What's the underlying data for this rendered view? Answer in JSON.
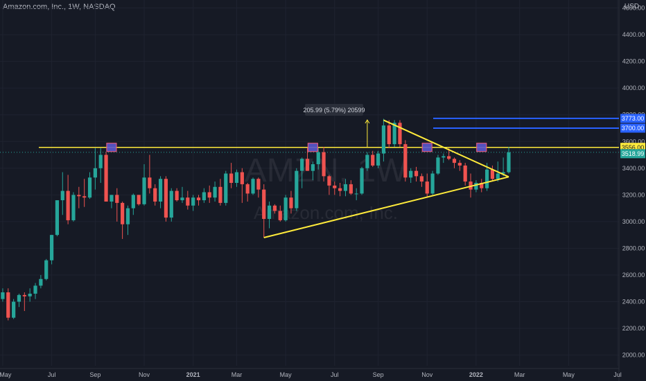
{
  "header": {
    "title": "Amazon.com, Inc., 1W, NASDAQ",
    "currency": "USD"
  },
  "watermark": {
    "symbol": "AMZN, 1W",
    "name": "Amazon.com, Inc."
  },
  "colors": {
    "background": "#161a25",
    "up": "#26a69a",
    "down": "#ef5350",
    "trend": "#ffeb3b",
    "level": "#2962ff",
    "box": "#5a58d0"
  },
  "measure_label": "205.99 (5.79%) 20599",
  "price_tags": [
    {
      "text": "3773.00",
      "price": 3773,
      "kind": "level"
    },
    {
      "text": "3700.00",
      "price": 3700,
      "kind": "level"
    },
    {
      "text": "3556.00",
      "price": 3556,
      "kind": "support"
    },
    {
      "text": "3518.99",
      "price": 3518.99,
      "kind": "last"
    }
  ],
  "chart_data": {
    "type": "candlestick",
    "timeframe": "1W",
    "y_ticks": [
      2000,
      2200,
      2400,
      2600,
      2800,
      3000,
      3200,
      3400,
      3600,
      3800,
      4000,
      4200,
      4400,
      4600
    ],
    "y_tick_labels": [
      "2000.00",
      "2200.00",
      "2400.00",
      "2600.00",
      "2800.00",
      "3000.00",
      "3200.00",
      "3400.00",
      "3600.00",
      "3800.00",
      "4000.00",
      "4200.00",
      "4400.00",
      "4600.00"
    ],
    "x_labels": [
      "May",
      "Jul",
      "Sep",
      "Nov",
      "2021",
      "Mar",
      "May",
      "Jul",
      "Sep",
      "Nov",
      "2022",
      "Mar",
      "May",
      "Jul"
    ],
    "x_label_weeks": [
      0,
      9,
      17,
      26,
      35,
      43,
      52,
      61,
      69,
      78,
      87,
      95,
      104,
      113
    ],
    "ylim": [
      1920,
      4660
    ],
    "xlim": [
      -0.5,
      114
    ],
    "candles": [
      [
        2420,
        2500,
        2400,
        2470
      ],
      [
        2470,
        2500,
        2260,
        2280
      ],
      [
        2280,
        2420,
        2270,
        2400
      ],
      [
        2400,
        2460,
        2360,
        2450
      ],
      [
        2450,
        2470,
        2330,
        2440
      ],
      [
        2440,
        2500,
        2400,
        2460
      ],
      [
        2460,
        2540,
        2420,
        2520
      ],
      [
        2520,
        2600,
        2500,
        2570
      ],
      [
        2570,
        2720,
        2560,
        2710
      ],
      [
        2710,
        2900,
        2680,
        2900
      ],
      [
        2900,
        3160,
        2890,
        3160
      ],
      [
        3160,
        3370,
        3050,
        3230
      ],
      [
        3230,
        3350,
        2980,
        3010
      ],
      [
        3010,
        3220,
        3000,
        3200
      ],
      [
        3200,
        3260,
        3100,
        3190
      ],
      [
        3190,
        3320,
        3110,
        3180
      ],
      [
        3180,
        3370,
        3170,
        3330
      ],
      [
        3330,
        3550,
        3240,
        3400
      ],
      [
        3400,
        3550,
        3290,
        3500
      ],
      [
        3500,
        3520,
        3150,
        3150
      ],
      [
        3150,
        3200,
        3100,
        3200
      ],
      [
        3200,
        3250,
        3000,
        3140
      ],
      [
        3140,
        3150,
        2870,
        2980
      ],
      [
        2980,
        3120,
        2900,
        3100
      ],
      [
        3100,
        3210,
        3050,
        3200
      ],
      [
        3200,
        3200,
        3120,
        3130
      ],
      [
        3130,
        3430,
        3120,
        3330
      ],
      [
        3330,
        3500,
        3210,
        3250
      ],
      [
        3250,
        3280,
        3120,
        3150
      ],
      [
        3150,
        3340,
        3100,
        3320
      ],
      [
        3320,
        3340,
        3000,
        3030
      ],
      [
        3030,
        3250,
        3000,
        3230
      ],
      [
        3230,
        3250,
        3150,
        3160
      ],
      [
        3160,
        3260,
        3140,
        3180
      ],
      [
        3180,
        3230,
        3090,
        3120
      ],
      [
        3120,
        3200,
        3080,
        3180
      ],
      [
        3180,
        3200,
        3120,
        3160
      ],
      [
        3160,
        3250,
        3140,
        3220
      ],
      [
        3220,
        3270,
        3140,
        3180
      ],
      [
        3180,
        3300,
        3150,
        3260
      ],
      [
        3260,
        3320,
        3120,
        3140
      ],
      [
        3140,
        3380,
        3120,
        3360
      ],
      [
        3360,
        3440,
        3250,
        3290
      ],
      [
        3290,
        3390,
        3260,
        3370
      ],
      [
        3370,
        3400,
        3140,
        3280
      ],
      [
        3280,
        3290,
        3150,
        3210
      ],
      [
        3210,
        3330,
        3200,
        3320
      ],
      [
        3320,
        3330,
        3180,
        3240
      ],
      [
        3240,
        3280,
        2880,
        3020
      ],
      [
        3020,
        3150,
        2950,
        3120
      ],
      [
        3120,
        3130,
        3060,
        3080
      ],
      [
        3080,
        3120,
        3000,
        3010
      ],
      [
        3010,
        3200,
        3000,
        3180
      ],
      [
        3180,
        3230,
        3060,
        3100
      ],
      [
        3100,
        3400,
        3080,
        3380
      ],
      [
        3380,
        3480,
        3250,
        3470
      ],
      [
        3470,
        3550,
        3380,
        3380
      ],
      [
        3380,
        3450,
        3310,
        3430
      ],
      [
        3430,
        3550,
        3390,
        3520
      ],
      [
        3520,
        3560,
        3300,
        3340
      ],
      [
        3340,
        3350,
        3200,
        3270
      ],
      [
        3270,
        3300,
        3200,
        3250
      ],
      [
        3250,
        3290,
        3190,
        3230
      ],
      [
        3230,
        3320,
        3190,
        3280
      ],
      [
        3280,
        3310,
        3200,
        3210
      ],
      [
        3210,
        3250,
        3160,
        3210
      ],
      [
        3210,
        3410,
        3200,
        3400
      ],
      [
        3400,
        3520,
        3380,
        3500
      ],
      [
        3500,
        3530,
        3410,
        3420
      ],
      [
        3420,
        3530,
        3400,
        3510
      ],
      [
        3510,
        3770,
        3450,
        3720
      ],
      [
        3720,
        3760,
        3550,
        3580
      ],
      [
        3580,
        3760,
        3560,
        3740
      ],
      [
        3740,
        3760,
        3560,
        3580
      ],
      [
        3580,
        3610,
        3300,
        3330
      ],
      [
        3330,
        3400,
        3290,
        3380
      ],
      [
        3380,
        3410,
        3300,
        3340
      ],
      [
        3340,
        3360,
        3260,
        3300
      ],
      [
        3300,
        3360,
        3180,
        3210
      ],
      [
        3210,
        3380,
        3200,
        3360
      ],
      [
        3360,
        3500,
        3350,
        3480
      ],
      [
        3480,
        3510,
        3440,
        3490
      ],
      [
        3490,
        3550,
        3460,
        3470
      ],
      [
        3470,
        3480,
        3400,
        3440
      ],
      [
        3440,
        3460,
        3380,
        3420
      ],
      [
        3420,
        3440,
        3270,
        3300
      ],
      [
        3300,
        3360,
        3180,
        3240
      ],
      [
        3240,
        3310,
        3220,
        3290
      ],
      [
        3290,
        3320,
        3220,
        3250
      ],
      [
        3250,
        3440,
        3230,
        3390
      ],
      [
        3390,
        3420,
        3300,
        3320
      ],
      [
        3320,
        3450,
        3300,
        3360
      ],
      [
        3360,
        3480,
        3340,
        3370
      ],
      [
        3370,
        3560,
        3360,
        3519
      ]
    ],
    "horizontal_levels": [
      3773,
      3700,
      3556
    ],
    "trend_lines": [
      {
        "from": [
          48,
          2880
        ],
        "to": [
          93,
          3335
        ]
      },
      {
        "from": [
          70,
          3760
        ],
        "to": [
          93,
          3335
        ]
      }
    ],
    "resistance_markers": [
      20,
      57,
      78,
      88
    ],
    "measure_arrow": {
      "week": 67,
      "from": 3556,
      "to": 3762
    }
  }
}
